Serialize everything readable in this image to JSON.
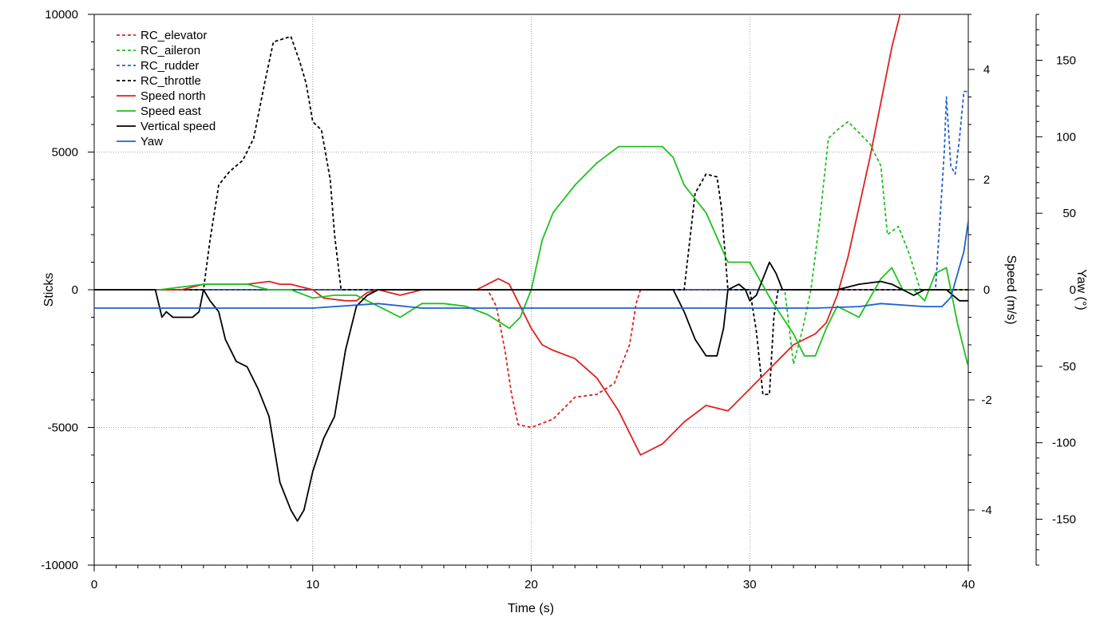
{
  "chart_data": {
    "type": "line",
    "xlabel": "Time (s)",
    "xlim": [
      0,
      40
    ],
    "x_ticks": [
      0,
      10,
      20,
      30,
      40
    ],
    "axes": {
      "sticks": {
        "label": "Sticks",
        "lim": [
          -10000,
          10000
        ],
        "ticks": [
          10000,
          5000,
          0,
          -5000,
          -10000
        ]
      },
      "speed": {
        "label": "Speed (m/s)",
        "lim": [
          -5,
          5
        ],
        "ticks": [
          4,
          2,
          0,
          -2,
          -4
        ]
      },
      "yaw": {
        "label": "Yaw (°)",
        "lim": [
          -180,
          180
        ],
        "ticks": [
          150,
          100,
          50,
          0,
          -50,
          -100,
          -150
        ]
      }
    },
    "grid": true,
    "legend_position": "top-left",
    "series": [
      {
        "name": "RC_elevator",
        "axis": "sticks",
        "style": "dashed",
        "color": "#e02020",
        "x": [
          0,
          18,
          18.4,
          18.8,
          19.1,
          19.4,
          20,
          21,
          22,
          23,
          23.8,
          24.5,
          24.8,
          25,
          25.2,
          40
        ],
        "y": [
          0,
          0,
          -600,
          -2200,
          -3800,
          -4900,
          -5000,
          -4700,
          -3900,
          -3800,
          -3400,
          -2000,
          -500,
          0,
          0,
          0
        ]
      },
      {
        "name": "RC_aileron",
        "axis": "sticks",
        "style": "dashed",
        "color": "#20c020",
        "x": [
          0,
          31,
          31.6,
          32.0,
          32.4,
          32.8,
          33.2,
          33.6,
          34.0,
          34.5,
          35.0,
          35.5,
          36.0,
          36.3,
          36.8,
          37.3,
          37.8,
          38.3,
          40
        ],
        "y": [
          0,
          0,
          0,
          -2700,
          -1500,
          0,
          2500,
          5500,
          5800,
          6100,
          5700,
          5300,
          4500,
          2000,
          2300,
          1300,
          0,
          0,
          0
        ]
      },
      {
        "name": "RC_rudder",
        "axis": "sticks",
        "style": "dashed",
        "color": "#2060d0",
        "x": [
          0,
          38.5,
          38.7,
          38.9,
          39.0,
          39.2,
          39.4,
          39.6,
          39.8,
          40
        ],
        "y": [
          0,
          0,
          2500,
          5000,
          7000,
          4500,
          4200,
          5500,
          7200,
          7200
        ]
      },
      {
        "name": "RC_throttle",
        "axis": "sticks",
        "style": "dashed",
        "color": "#000000",
        "x": [
          0,
          5.0,
          5.3,
          5.7,
          6.2,
          6.8,
          7.3,
          7.8,
          8.2,
          8.6,
          9.0,
          9.4,
          9.7,
          10.0,
          10.4,
          10.8,
          11.0,
          11.3,
          27.0,
          27.5,
          28.0,
          28.5,
          28.7,
          29.0,
          30.0,
          30.3,
          30.6,
          30.9,
          31.1,
          31.3,
          40
        ],
        "y": [
          0,
          0,
          1800,
          3800,
          4300,
          4700,
          5500,
          7500,
          9000,
          9100,
          9200,
          8300,
          7500,
          6100,
          5800,
          4000,
          2000,
          0,
          0,
          3500,
          4200,
          4100,
          3000,
          0,
          0,
          -1500,
          -3800,
          -3800,
          -1000,
          0,
          0
        ]
      },
      {
        "name": "Speed north",
        "axis": "speed",
        "style": "solid",
        "color": "#e02020",
        "x": [
          0,
          4.0,
          5.0,
          6.0,
          7.0,
          8.0,
          8.5,
          9.0,
          9.5,
          10.0,
          10.5,
          11.5,
          12.0,
          12.5,
          13.0,
          14.0,
          15.0,
          16.0,
          17.0,
          17.5,
          18.0,
          18.5,
          19.0,
          19.5,
          20.0,
          20.5,
          21.0,
          22.0,
          23.0,
          24.0,
          25.0,
          26.0,
          27.0,
          28.0,
          29.0,
          30.0,
          31.0,
          32.0,
          33.0,
          33.5,
          34.0,
          34.5,
          35.0,
          35.5,
          36.0,
          36.5,
          37.0
        ],
        "y": [
          0,
          0,
          0.1,
          0.1,
          0.1,
          0.15,
          0.1,
          0.1,
          0.05,
          0,
          -0.15,
          -0.2,
          -0.2,
          -0.05,
          0,
          -0.1,
          0,
          0,
          0,
          0,
          0.1,
          0.2,
          0.1,
          -0.3,
          -0.7,
          -1.0,
          -1.1,
          -1.25,
          -1.6,
          -2.2,
          -3.0,
          -2.8,
          -2.4,
          -2.1,
          -2.2,
          -1.8,
          -1.4,
          -1.0,
          -0.8,
          -0.6,
          -0.1,
          0.6,
          1.5,
          2.4,
          3.4,
          4.4,
          5.2
        ]
      },
      {
        "name": "Speed east",
        "axis": "speed",
        "style": "solid",
        "color": "#20c020",
        "x": [
          0,
          3.0,
          5.0,
          7.0,
          8.0,
          9.0,
          10.0,
          11.0,
          12.0,
          13.0,
          14.0,
          15.0,
          16.0,
          17.0,
          18.0,
          19.0,
          19.5,
          20.0,
          20.5,
          21.0,
          22.0,
          23.0,
          24.0,
          25.0,
          26.0,
          26.5,
          27.0,
          28.0,
          29.0,
          30.0,
          31.0,
          32.0,
          32.5,
          33.0,
          33.5,
          34.0,
          35.0,
          36.0,
          36.5,
          37.0,
          37.5,
          38.0,
          38.5,
          39.0,
          39.5,
          40.0
        ],
        "y": [
          0,
          0,
          0.1,
          0.1,
          0.0,
          0.0,
          -0.15,
          -0.1,
          -0.1,
          -0.3,
          -0.5,
          -0.25,
          -0.25,
          -0.3,
          -0.45,
          -0.7,
          -0.5,
          0.0,
          0.9,
          1.4,
          1.9,
          2.3,
          2.6,
          2.6,
          2.6,
          2.4,
          1.9,
          1.4,
          0.5,
          0.5,
          -0.2,
          -0.8,
          -1.2,
          -1.2,
          -0.7,
          -0.3,
          -0.5,
          0.2,
          0.4,
          0.0,
          0.0,
          -0.2,
          0.3,
          0.4,
          -0.6,
          -1.4
        ]
      },
      {
        "name": "Vertical speed",
        "axis": "speed",
        "style": "solid",
        "color": "#000000",
        "x": [
          0,
          2.8,
          3.1,
          3.3,
          3.6,
          4.0,
          4.5,
          4.8,
          5.0,
          5.3,
          5.7,
          6.0,
          6.5,
          7.0,
          7.5,
          8.0,
          8.5,
          9.0,
          9.3,
          9.6,
          10.0,
          10.5,
          11.0,
          11.5,
          12.0,
          12.5,
          13.0,
          20.0,
          20.5,
          26.0,
          26.5,
          27.0,
          27.5,
          28.0,
          28.5,
          28.8,
          29.0,
          29.5,
          29.8,
          30.0,
          30.3,
          30.6,
          30.9,
          31.2,
          31.5,
          32.0,
          33.0,
          34.0,
          35.0,
          36.0,
          36.5,
          37.0,
          37.5,
          38.0,
          38.5,
          39.0,
          39.3,
          39.6,
          40.0
        ],
        "y": [
          0,
          0,
          -0.5,
          -0.4,
          -0.5,
          -0.5,
          -0.5,
          -0.4,
          0.0,
          -0.2,
          -0.4,
          -0.9,
          -1.3,
          -1.4,
          -1.8,
          -2.3,
          -3.5,
          -4.0,
          -4.2,
          -4.0,
          -3.3,
          -2.7,
          -2.3,
          -1.1,
          -0.3,
          -0.1,
          0.0,
          0.0,
          0.0,
          0.0,
          0.0,
          -0.4,
          -0.9,
          -1.2,
          -1.2,
          -0.7,
          0.0,
          0.1,
          0.0,
          -0.2,
          -0.1,
          0.2,
          0.5,
          0.3,
          0.0,
          0.0,
          0.0,
          0.0,
          0.1,
          0.15,
          0.1,
          0.0,
          -0.1,
          0.0,
          0.0,
          0.0,
          -0.1,
          -0.2,
          -0.2
        ]
      },
      {
        "name": "Yaw",
        "axis": "yaw",
        "style": "solid",
        "color": "#2060d0",
        "x": [
          0,
          5,
          10,
          13,
          15,
          20,
          25,
          30,
          33,
          35,
          36,
          38,
          38.8,
          39.2,
          39.5,
          39.8,
          40.0
        ],
        "y": [
          -12,
          -12,
          -12,
          -9,
          -12,
          -12,
          -12,
          -12,
          -12,
          -11,
          -9,
          -11,
          -11,
          -5,
          10,
          25,
          45
        ]
      }
    ]
  }
}
